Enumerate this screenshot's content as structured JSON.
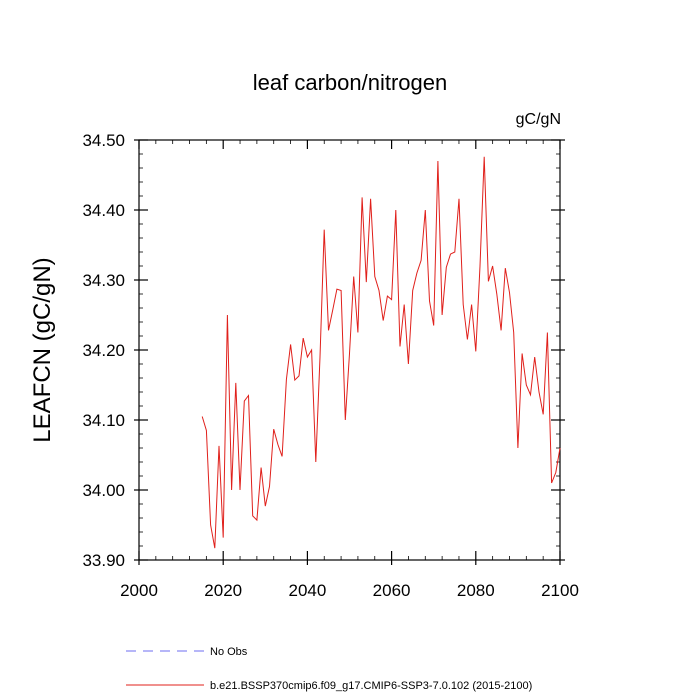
{
  "chart_data": {
    "type": "line",
    "title": "leaf carbon/nitrogen",
    "units_label": "gC/gN",
    "ylabel": "LEAFCN  (gC/gN)",
    "xlabel": "",
    "xlim": [
      2000,
      2100
    ],
    "ylim": [
      33.9,
      34.5
    ],
    "x_ticks": [
      2000,
      2020,
      2040,
      2060,
      2080,
      2100
    ],
    "y_ticks": [
      33.9,
      34.0,
      34.1,
      34.2,
      34.3,
      34.4,
      34.5
    ],
    "x_tick_labels": [
      "2000",
      "2020",
      "2040",
      "2060",
      "2080",
      "2100"
    ],
    "y_tick_labels": [
      "33.90",
      "34.00",
      "34.10",
      "34.20",
      "34.30",
      "34.40",
      "34.50"
    ],
    "grid": false,
    "legend_position": "bottom",
    "series": [
      {
        "name": "b.e21.BSSP370cmip6.f09_g17.CMIP6-SSP3-7.0.102 (2015-2100)",
        "color": "#e0201b",
        "style": "solid",
        "x": [
          2015,
          2016,
          2017,
          2018,
          2019,
          2020,
          2021,
          2022,
          2023,
          2024,
          2025,
          2026,
          2027,
          2028,
          2029,
          2030,
          2031,
          2032,
          2033,
          2034,
          2035,
          2036,
          2037,
          2038,
          2039,
          2040,
          2041,
          2042,
          2043,
          2044,
          2045,
          2046,
          2047,
          2048,
          2049,
          2050,
          2051,
          2052,
          2053,
          2054,
          2055,
          2056,
          2057,
          2058,
          2059,
          2060,
          2061,
          2062,
          2063,
          2064,
          2065,
          2066,
          2067,
          2068,
          2069,
          2070,
          2071,
          2072,
          2073,
          2074,
          2075,
          2076,
          2077,
          2078,
          2079,
          2080,
          2081,
          2082,
          2083,
          2084,
          2085,
          2086,
          2087,
          2088,
          2089,
          2090,
          2091,
          2092,
          2093,
          2094,
          2095,
          2096,
          2097,
          2098,
          2099,
          2100
        ],
        "values": [
          34.105,
          34.085,
          33.95,
          33.917,
          34.063,
          33.932,
          34.25,
          34.0,
          34.153,
          34.0,
          34.127,
          34.135,
          33.963,
          33.957,
          34.032,
          33.977,
          34.005,
          34.087,
          34.065,
          34.048,
          34.158,
          34.208,
          34.157,
          34.163,
          34.217,
          34.19,
          34.2,
          34.04,
          34.19,
          34.372,
          34.228,
          34.257,
          34.287,
          34.285,
          34.1,
          34.195,
          34.305,
          34.225,
          34.418,
          34.297,
          34.416,
          34.305,
          34.285,
          34.242,
          34.277,
          34.272,
          34.4,
          34.205,
          34.265,
          34.18,
          34.285,
          34.31,
          34.328,
          34.4,
          34.27,
          34.235,
          34.47,
          34.25,
          34.318,
          34.337,
          34.34,
          34.416,
          34.265,
          34.215,
          34.265,
          34.198,
          34.32,
          34.476,
          34.298,
          34.32,
          34.28,
          34.228,
          34.317,
          34.282,
          34.225,
          34.06,
          34.195,
          34.15,
          34.136,
          34.19,
          34.14,
          34.108,
          34.225,
          34.01,
          34.025,
          34.06
        ]
      },
      {
        "name": "No Obs",
        "color": "#6c6cf0",
        "style": "dashed",
        "x": [],
        "values": []
      }
    ]
  }
}
